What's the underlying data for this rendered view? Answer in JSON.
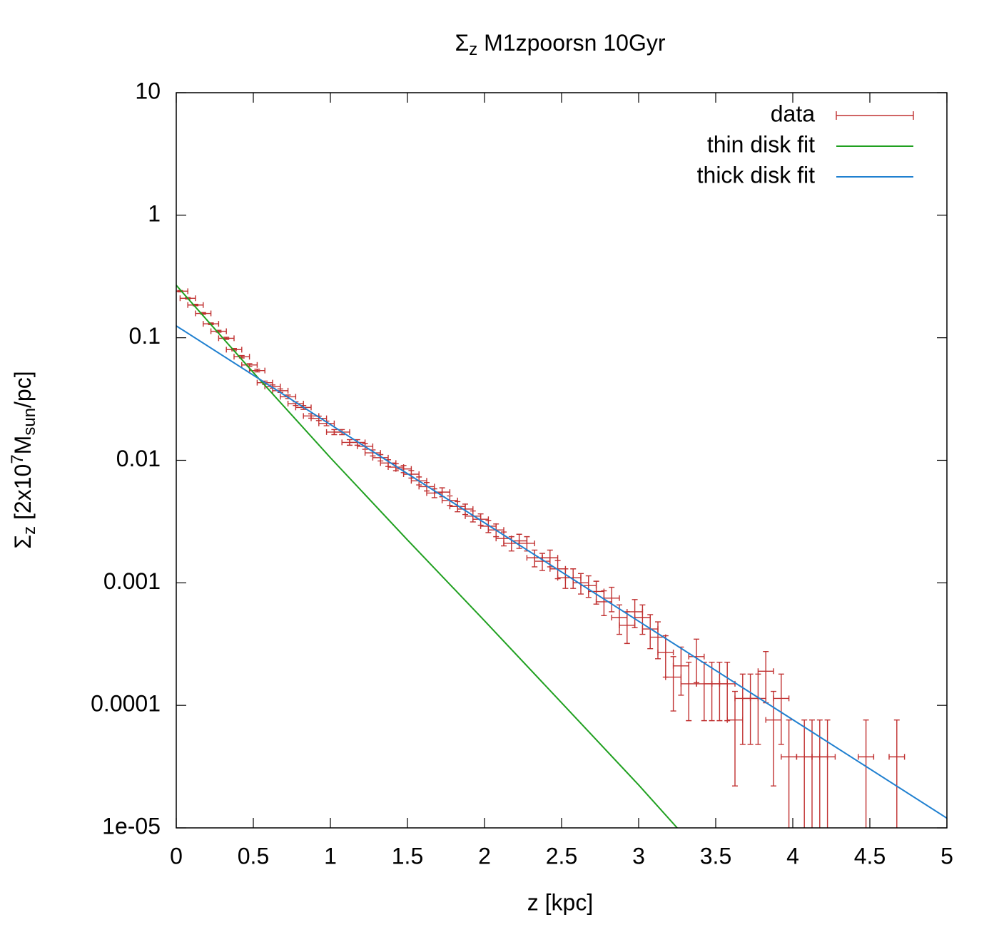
{
  "chart_data": {
    "type": "scatter",
    "title": [
      "Σ",
      "z",
      " M1zpoorsn 10Gyr"
    ],
    "xlabel": "z [kpc]",
    "ylabel": [
      "Σ",
      "z",
      " [2x10",
      "7",
      "M",
      "sun",
      "/pc]"
    ],
    "xlim": [
      0,
      5
    ],
    "ylim": [
      1e-05,
      10
    ],
    "log_y": true,
    "grid": false,
    "legend": "top-right",
    "xticks": [
      0,
      0.5,
      1,
      1.5,
      2,
      2.5,
      3,
      3.5,
      4,
      4.5,
      5
    ],
    "yticks": [
      10,
      1,
      0.1,
      0.01,
      0.001,
      0.0001,
      {
        "value": 1e-05,
        "label": "1e-05"
      }
    ],
    "series": [
      {
        "name": "data",
        "color": "#c03030",
        "style": "xyerrorbars",
        "xerror": 0.05,
        "x": [
          0.025,
          0.075,
          0.125,
          0.175,
          0.225,
          0.275,
          0.325,
          0.375,
          0.425,
          0.475,
          0.525,
          0.575,
          0.625,
          0.675,
          0.725,
          0.775,
          0.825,
          0.875,
          0.925,
          0.975,
          1.025,
          1.075,
          1.125,
          1.175,
          1.225,
          1.275,
          1.325,
          1.375,
          1.425,
          1.475,
          1.525,
          1.575,
          1.625,
          1.675,
          1.725,
          1.775,
          1.825,
          1.875,
          1.925,
          1.975,
          2.025,
          2.075,
          2.125,
          2.175,
          2.225,
          2.275,
          2.325,
          2.375,
          2.425,
          2.475,
          2.525,
          2.575,
          2.625,
          2.675,
          2.725,
          2.775,
          2.825,
          2.875,
          2.925,
          2.975,
          3.025,
          3.075,
          3.125,
          3.175,
          3.225,
          3.275,
          3.325,
          3.375,
          3.425,
          3.475,
          3.525,
          3.575,
          3.625,
          3.675,
          3.725,
          3.775,
          3.825,
          3.875,
          3.925,
          3.975,
          4.075,
          4.125,
          4.175,
          4.225,
          4.475,
          4.675
        ],
        "values": [
          0.24,
          0.21,
          0.185,
          0.158,
          0.13,
          0.113,
          0.099,
          0.08,
          0.07,
          0.06,
          0.054,
          0.043,
          0.04,
          0.037,
          0.033,
          0.029,
          0.027,
          0.023,
          0.022,
          0.02,
          0.017,
          0.017,
          0.014,
          0.014,
          0.013,
          0.0115,
          0.0105,
          0.0095,
          0.0088,
          0.0085,
          0.0077,
          0.0068,
          0.0061,
          0.0054,
          0.0055,
          0.0047,
          0.0042,
          0.004,
          0.0035,
          0.0033,
          0.0029,
          0.0027,
          0.0023,
          0.0021,
          0.0022,
          0.0021,
          0.0016,
          0.0015,
          0.0016,
          0.0013,
          0.0011,
          0.0011,
          0.001,
          0.00095,
          0.00085,
          0.0007,
          0.00075,
          0.00052,
          0.00045,
          0.00058,
          0.00052,
          0.00042,
          0.00036,
          0.00027,
          0.00017,
          0.00021,
          0.00015,
          0.00025,
          0.00015,
          0.00015,
          0.00015,
          0.00015,
          7.6e-05,
          0.000114,
          0.000114,
          0.000114,
          0.00019,
          7.6e-05,
          0.000114,
          3.8e-05,
          3.8e-05,
          3.8e-05,
          3.8e-05,
          3.8e-05,
          3.8e-05,
          3.8e-05
        ],
        "yerror": [
          0.003,
          0.0028,
          0.0027,
          0.0025,
          0.0022,
          0.0021,
          0.0019,
          0.0017,
          0.0016,
          0.0015,
          0.0014,
          0.0013,
          0.0012,
          0.0012,
          0.0011,
          0.001,
          0.001,
          0.00093,
          0.00091,
          0.00087,
          0.0008,
          0.0008,
          0.00073,
          0.00073,
          0.0007,
          0.00066,
          0.00063,
          0.0006,
          0.00058,
          0.00057,
          0.00054,
          0.00051,
          0.00048,
          0.00045,
          0.00046,
          0.00042,
          0.0004,
          0.00039,
          0.00036,
          0.00035,
          0.00033,
          0.00032,
          0.0003,
          0.00028,
          0.00029,
          0.00028,
          0.00025,
          0.00024,
          0.00025,
          0.00022,
          0.0002,
          0.0002,
          0.00019,
          0.00019,
          0.00018,
          0.00016,
          0.00017,
          0.00014,
          0.00013,
          0.00015,
          0.00014,
          0.00013,
          0.00012,
          0.0001,
          8e-05,
          8.9e-05,
          7.5e-05,
          9.7e-05,
          7.5e-05,
          7.5e-05,
          7.5e-05,
          7.5e-05,
          5.4e-05,
          6.6e-05,
          6.6e-05,
          6.6e-05,
          8.5e-05,
          5.4e-05,
          6.6e-05,
          3.8e-05,
          3.8e-05,
          3.8e-05,
          3.8e-05,
          3.8e-05,
          3.8e-05,
          3.8e-05
        ]
      },
      {
        "name": "thin disk fit",
        "color": "#20a020",
        "style": "lines",
        "x": [
          0,
          0.5,
          1,
          1.5,
          2,
          2.5,
          3,
          3.25
        ],
        "values": [
          0.268,
          0.052,
          0.0105,
          0.00224,
          0.00049,
          0.000105,
          2.24e-05,
          1e-05
        ]
      },
      {
        "name": "thick disk fit",
        "color": "#2080d0",
        "style": "lines",
        "x": [
          0,
          1,
          2,
          3,
          4,
          5
        ],
        "values": [
          0.125,
          0.0196,
          0.00309,
          0.000486,
          7.64e-05,
          1.2e-05
        ]
      }
    ]
  }
}
